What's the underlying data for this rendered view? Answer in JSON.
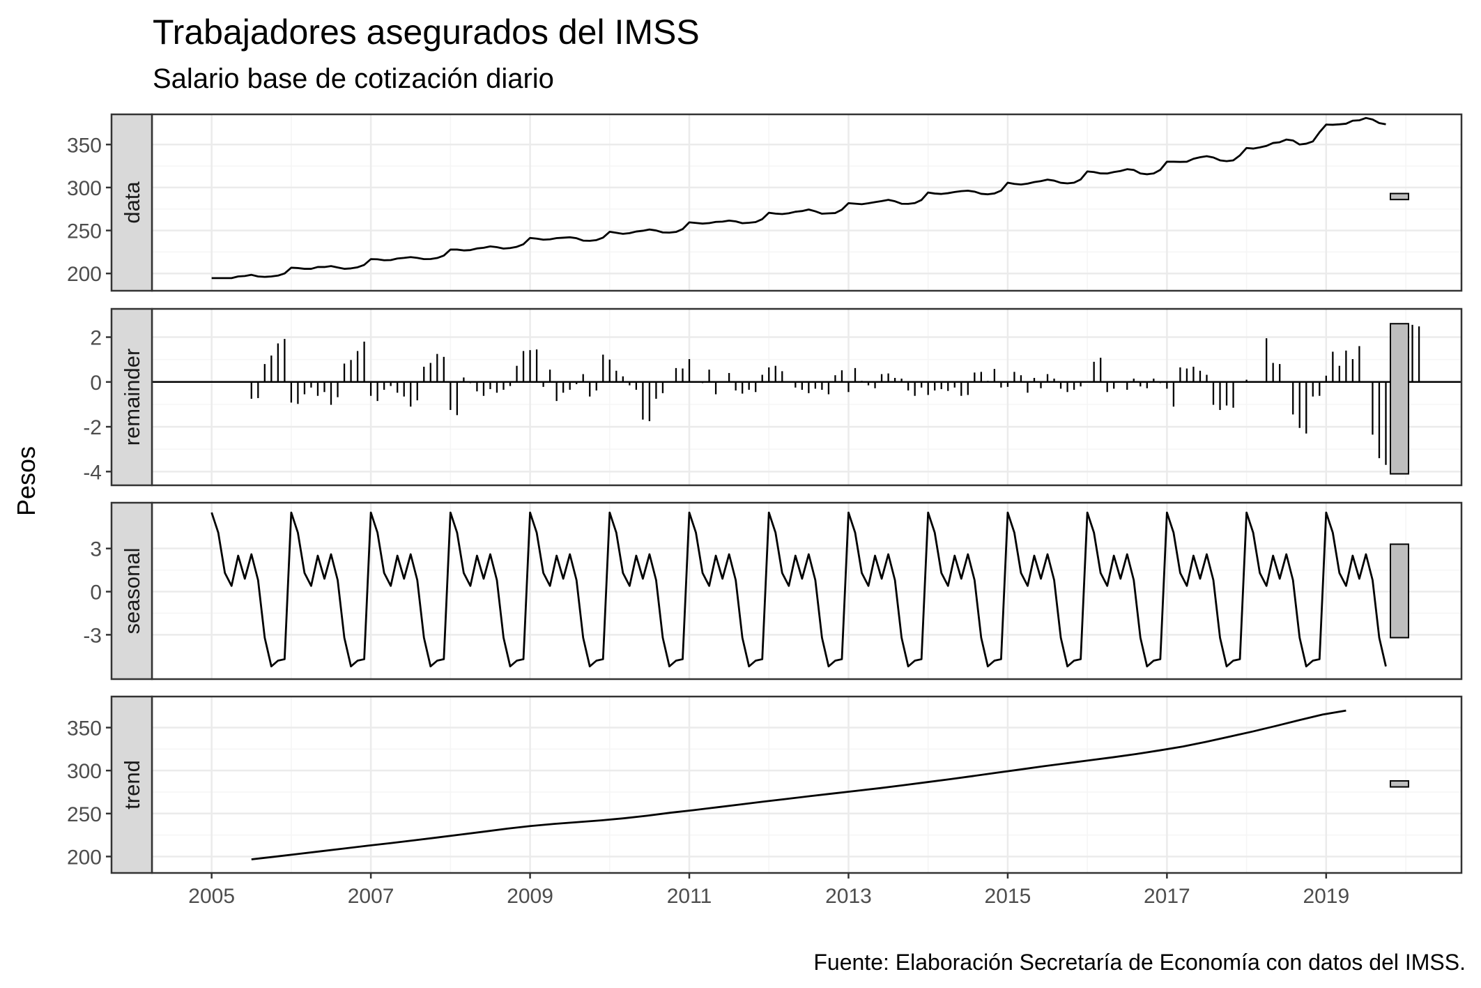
{
  "title": "Trabajadores asegurados del IMSS",
  "subtitle": "Salario base de cotización diario",
  "caption": "Fuente: Elaboración Secretaría de Economía con datos del IMSS.",
  "chart_data": {
    "type": "line",
    "ylabel": "Pesos",
    "xlabel": "",
    "x_ticks": [
      2005,
      2007,
      2009,
      2011,
      2013,
      2015,
      2017,
      2019
    ],
    "xlim": [
      2004.25,
      2020.7
    ],
    "time_start": 2005.0,
    "time_step": 0.08333333,
    "grid": true,
    "colors": {
      "line": "#000000",
      "strip": "#d9d9d9",
      "bar": "#bebebe",
      "grid_major": "#ebebeb",
      "grid_minor": "#f5f5f5"
    },
    "panels": [
      {
        "name": "data",
        "kind": "line",
        "ylim": [
          188,
          377
        ],
        "y_ticks": [
          200,
          250,
          300,
          350
        ],
        "range_bar": [
          286,
          293
        ],
        "values": [
          194.6,
          194.6,
          194.6,
          194.6,
          196.5,
          197.0,
          198.4,
          196.5,
          196.0,
          196.5,
          197.5,
          200.0,
          206.7,
          206.3,
          205.4,
          205.4,
          207.5,
          207.5,
          208.6,
          207.0,
          205.4,
          205.9,
          207.2,
          210.0,
          216.7,
          216.5,
          215.4,
          215.6,
          217.4,
          218.1,
          219.0,
          218.1,
          216.7,
          216.8,
          218.0,
          220.8,
          227.8,
          227.8,
          226.8,
          227.2,
          229.1,
          229.9,
          231.5,
          230.6,
          229.0,
          229.6,
          231.0,
          234.0,
          241.3,
          240.5,
          239.3,
          239.7,
          241.1,
          241.6,
          242.1,
          241.0,
          238.2,
          238.0,
          238.8,
          241.7,
          248.5,
          247.3,
          246.1,
          246.9,
          248.8,
          249.7,
          251.2,
          250.0,
          247.7,
          247.5,
          248.3,
          251.6,
          259.5,
          258.8,
          258.0,
          258.6,
          260.0,
          260.3,
          261.5,
          260.6,
          258.5,
          259.0,
          259.8,
          263.2,
          270.6,
          269.6,
          269.1,
          270.0,
          271.8,
          272.6,
          274.4,
          272.3,
          269.5,
          269.9,
          270.3,
          274.2,
          281.8,
          281.2,
          280.6,
          281.7,
          283.0,
          284.2,
          285.6,
          284.0,
          281.1,
          281.0,
          281.9,
          285.5,
          294.2,
          293.0,
          292.5,
          293.4,
          294.8,
          295.8,
          296.3,
          295.2,
          292.7,
          292.1,
          293.1,
          296.4,
          305.6,
          304.2,
          303.5,
          304.5,
          306.3,
          307.4,
          309.2,
          308.0,
          305.5,
          304.8,
          305.6,
          309.4,
          318.7,
          318.0,
          316.4,
          316.3,
          318.0,
          319.2,
          321.3,
          320.4,
          316.4,
          315.4,
          316.4,
          320.5,
          330.0,
          330.0,
          329.8,
          330.0,
          333.4,
          335.2,
          336.4,
          334.9,
          331.6,
          330.7,
          331.6,
          337.4,
          346.0,
          345.3,
          346.7,
          348.4,
          351.8,
          352.7,
          355.8,
          354.7,
          350.0,
          351.0,
          353.6,
          364.3,
          373.2,
          373.0,
          373.5,
          374.2,
          377.7,
          378.2,
          380.9,
          379.1,
          375.0,
          373.5
        ]
      },
      {
        "name": "remainder",
        "kind": "bar",
        "ylim": [
          -4.3,
          2.95
        ],
        "y_ticks": [
          -4,
          -2,
          0,
          2
        ],
        "range_bar": [
          -4.1,
          2.6
        ],
        "values": [
          0.0,
          0.0,
          0.0,
          0.0,
          0.0,
          0.0,
          -0.75,
          -0.72,
          0.8,
          1.18,
          1.72,
          1.92,
          -0.92,
          -0.98,
          -0.55,
          -0.25,
          -0.62,
          -0.45,
          -1.02,
          -0.68,
          0.82,
          0.98,
          1.38,
          1.8,
          -0.62,
          -0.85,
          -0.35,
          -0.18,
          -0.48,
          -0.65,
          -1.1,
          -0.82,
          0.68,
          0.85,
          1.25,
          1.12,
          -1.25,
          -1.48,
          0.2,
          -0.05,
          -0.42,
          -0.62,
          -0.32,
          -0.48,
          -0.35,
          -0.18,
          0.72,
          1.38,
          1.42,
          1.45,
          -0.22,
          0.55,
          -0.85,
          -0.48,
          -0.35,
          -0.1,
          0.35,
          -0.65,
          -0.38,
          1.22,
          1.0,
          0.5,
          0.25,
          -0.15,
          -0.35,
          -1.68,
          -1.75,
          -0.75,
          -0.5,
          -0.02,
          0.62,
          0.6,
          1.02,
          0.02,
          -0.05,
          0.55,
          -0.55,
          0.0,
          0.4,
          -0.38,
          -0.52,
          -0.35,
          -0.45,
          0.32,
          0.65,
          0.72,
          0.48,
          0.02,
          -0.25,
          -0.35,
          -0.5,
          -0.3,
          -0.35,
          -0.55,
          0.3,
          0.52,
          -0.45,
          0.62,
          0.05,
          -0.15,
          -0.28,
          0.35,
          0.38,
          0.18,
          0.15,
          -0.38,
          -0.62,
          -0.25,
          -0.58,
          -0.38,
          -0.32,
          -0.4,
          -0.25,
          -0.62,
          -0.58,
          0.42,
          0.45,
          0.05,
          0.58,
          -0.25,
          -0.22,
          0.45,
          0.3,
          -0.48,
          0.18,
          -0.28,
          0.35,
          0.15,
          -0.3,
          -0.45,
          -0.35,
          -0.2,
          0.0,
          0.9,
          1.08,
          -0.45,
          -0.3,
          0.0,
          -0.35,
          0.15,
          -0.2,
          -0.28,
          0.15,
          -0.05,
          -0.3,
          -1.1,
          0.65,
          0.6,
          0.68,
          0.5,
          0.32,
          -1.02,
          -1.25,
          -1.05,
          -1.15,
          0.02,
          0.1,
          0.0,
          0.02,
          1.95,
          0.85,
          0.8,
          0.0,
          -1.45,
          -2.05,
          -2.3,
          -0.65,
          -0.62,
          0.28,
          1.35,
          0.72,
          1.4,
          1.02,
          1.6,
          0.0,
          -2.35,
          -3.4,
          -3.7,
          -4.1,
          1.75,
          2.4,
          2.55,
          2.48,
          0.0
        ]
      },
      {
        "name": "seasonal",
        "kind": "line",
        "ylim": [
          -5.6,
          5.7
        ],
        "y_ticks": [
          -3,
          0,
          3
        ],
        "range_bar": [
          -3.2,
          3.3
        ],
        "values": [
          5.5,
          4.1,
          1.3,
          0.4,
          2.5,
          0.9,
          2.6,
          0.8,
          -3.2,
          -5.2,
          -4.8,
          -4.7
        ]
      },
      {
        "name": "trend",
        "kind": "line",
        "ylim": [
          189,
          378
        ],
        "y_ticks": [
          200,
          250,
          300,
          350
        ],
        "range_bar": [
          281,
          288
        ],
        "start": 2005.5,
        "end": 2019.25,
        "values": [
          196.7,
          199.8,
          203.0,
          206.2,
          209.4,
          212.6,
          215.7,
          218.9,
          222.2,
          225.6,
          229.0,
          232.5,
          235.5,
          238.0,
          240.0,
          242.0,
          244.5,
          247.5,
          251.0,
          254.0,
          257.3,
          260.6,
          263.9,
          267.1,
          270.3,
          273.4,
          276.5,
          279.6,
          283.0,
          286.5,
          290.0,
          293.7,
          297.5,
          301.2,
          305.0,
          308.5,
          312.0,
          315.5,
          319.3,
          323.5,
          328.0,
          333.5,
          339.5,
          345.5,
          352.0,
          358.7,
          365.2,
          369.8
        ]
      }
    ]
  }
}
